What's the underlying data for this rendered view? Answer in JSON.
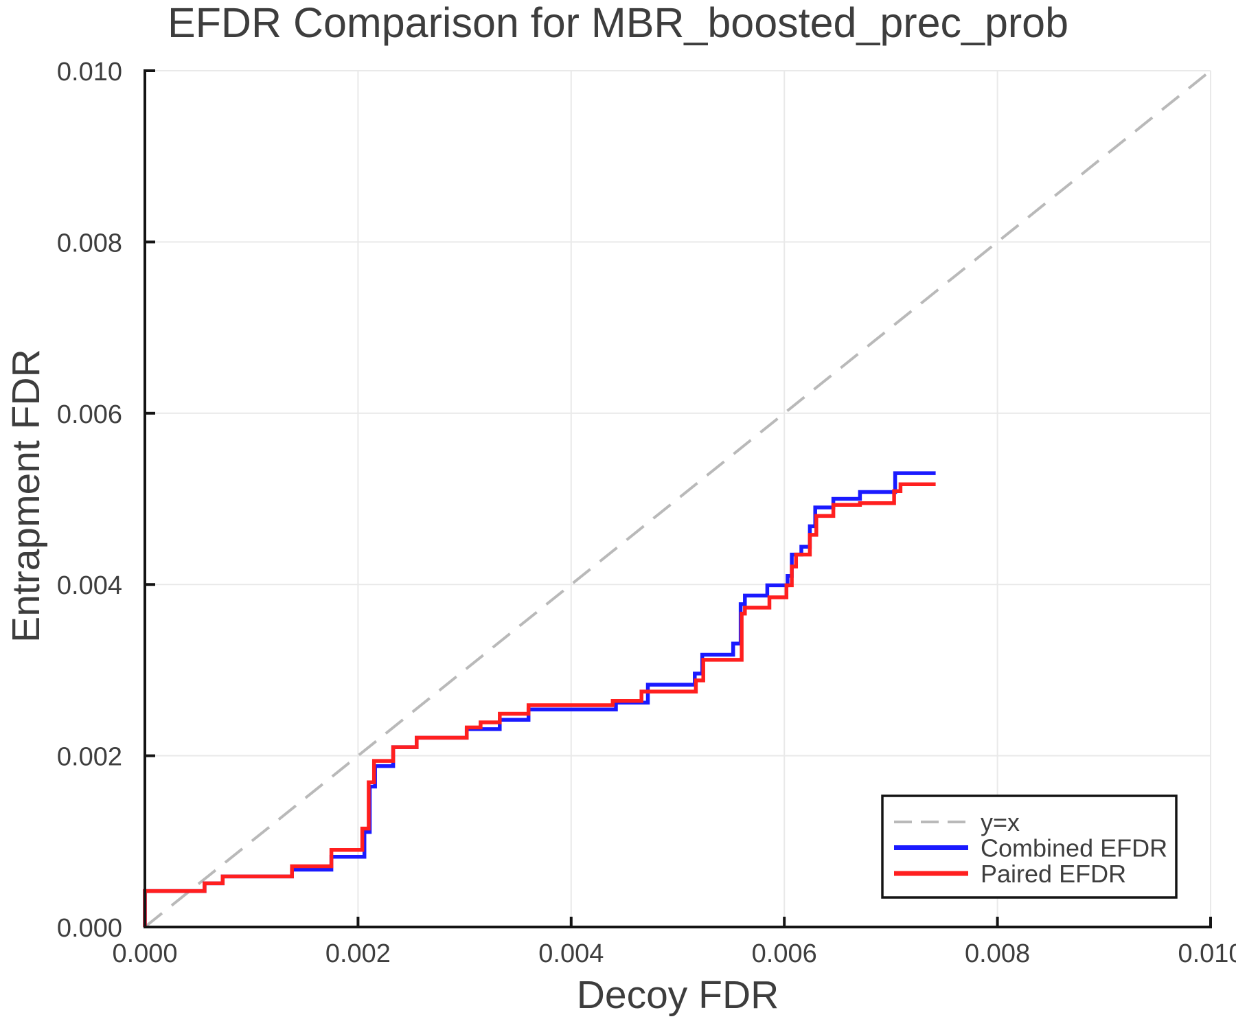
{
  "chart_data": {
    "type": "line",
    "title": "EFDR Comparison for MBR_boosted_prec_prob",
    "xlabel": "Decoy FDR",
    "ylabel": "Entrapment FDR",
    "xlim": [
      0,
      0.01
    ],
    "ylim": [
      0,
      0.01
    ],
    "grid": true,
    "legend_position": "lower right",
    "x_ticks": {
      "values": [
        0,
        0.002,
        0.004,
        0.006,
        0.008,
        0.01
      ],
      "labels": [
        "0.000",
        "0.002",
        "0.004",
        "0.006",
        "0.008",
        "0.010"
      ]
    },
    "y_ticks": {
      "values": [
        0,
        0.002,
        0.004,
        0.006,
        0.008,
        0.01
      ],
      "labels": [
        "0.000",
        "0.002",
        "0.004",
        "0.006",
        "0.008",
        "0.010"
      ]
    },
    "series": [
      {
        "name": "y=x",
        "style": "dashed",
        "color": "#b9b9b9",
        "points": [
          [
            0,
            0
          ],
          [
            0.01,
            0.01
          ]
        ]
      },
      {
        "name": "Combined EFDR",
        "style": "step",
        "color": "#1a1aff",
        "points": [
          [
            0,
            0
          ],
          [
            0,
            0.00042
          ],
          [
            0.00056,
            0.00051
          ],
          [
            0.00073,
            0.00059
          ],
          [
            0.00138,
            0.00067
          ],
          [
            0.00175,
            0.00082
          ],
          [
            0.00206,
            0.00111
          ],
          [
            0.00211,
            0.00164
          ],
          [
            0.00216,
            0.00188
          ],
          [
            0.00233,
            0.0021
          ],
          [
            0.00255,
            0.00221
          ],
          [
            0.00302,
            0.00231
          ],
          [
            0.00333,
            0.00242
          ],
          [
            0.0036,
            0.00254
          ],
          [
            0.00442,
            0.00262
          ],
          [
            0.00472,
            0.00283
          ],
          [
            0.00516,
            0.00296
          ],
          [
            0.00523,
            0.00318
          ],
          [
            0.00552,
            0.00331
          ],
          [
            0.00559,
            0.00377
          ],
          [
            0.00563,
            0.00387
          ],
          [
            0.00584,
            0.00399
          ],
          [
            0.00603,
            0.0041
          ],
          [
            0.00607,
            0.00435
          ],
          [
            0.00616,
            0.00444
          ],
          [
            0.00624,
            0.00468
          ],
          [
            0.00629,
            0.0049
          ],
          [
            0.00646,
            0.005
          ],
          [
            0.00671,
            0.00508
          ],
          [
            0.00704,
            0.0053
          ],
          [
            0.00742,
            0.0053
          ]
        ]
      },
      {
        "name": "Paired EFDR",
        "style": "step",
        "color": "#ff1f1f",
        "points": [
          [
            0,
            0
          ],
          [
            0,
            0.00042
          ],
          [
            0.00056,
            0.00051
          ],
          [
            0.00073,
            0.00059
          ],
          [
            0.00138,
            0.00071
          ],
          [
            0.00175,
            0.0009
          ],
          [
            0.00204,
            0.00115
          ],
          [
            0.0021,
            0.00169
          ],
          [
            0.00215,
            0.00194
          ],
          [
            0.00233,
            0.0021
          ],
          [
            0.00255,
            0.00221
          ],
          [
            0.00302,
            0.00233
          ],
          [
            0.00315,
            0.00239
          ],
          [
            0.00333,
            0.00249
          ],
          [
            0.0036,
            0.00259
          ],
          [
            0.00439,
            0.00264
          ],
          [
            0.00466,
            0.00275
          ],
          [
            0.00517,
            0.00288
          ],
          [
            0.00524,
            0.00312
          ],
          [
            0.0056,
            0.00366
          ],
          [
            0.00563,
            0.00373
          ],
          [
            0.00586,
            0.00385
          ],
          [
            0.00602,
            0.00399
          ],
          [
            0.00607,
            0.00421
          ],
          [
            0.00611,
            0.00435
          ],
          [
            0.00624,
            0.00458
          ],
          [
            0.0063,
            0.0048
          ],
          [
            0.00646,
            0.00493
          ],
          [
            0.00671,
            0.00495
          ],
          [
            0.00703,
            0.00509
          ],
          [
            0.00709,
            0.00517
          ],
          [
            0.00742,
            0.00517
          ]
        ]
      }
    ]
  },
  "colors": {
    "background": "#ffffff",
    "grid": "#e9e9e9",
    "axis": "#141414",
    "text": "#3d3d3d",
    "legend_border": "#141414",
    "diagonal": "#b9b9b9",
    "combined": "#1a1aff",
    "paired": "#ff1f1f"
  }
}
